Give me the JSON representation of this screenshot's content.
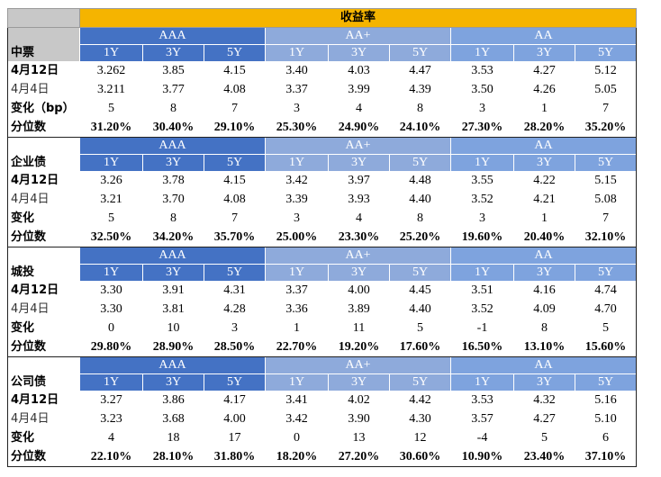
{
  "title": "收益率",
  "columns": [
    "1Y",
    "3Y",
    "5Y",
    "1Y",
    "3Y",
    "5Y",
    "1Y",
    "3Y",
    "5Y"
  ],
  "groups": [
    "AAA",
    "AA+",
    "AA"
  ],
  "sections": [
    {
      "name": "中票",
      "rows": [
        {
          "label": "4月12日",
          "style": "bold",
          "values": [
            "3.262",
            "3.85",
            "4.15",
            "3.40",
            "4.03",
            "4.47",
            "3.53",
            "4.27",
            "5.12"
          ]
        },
        {
          "label": "4月4日",
          "style": "light",
          "values": [
            "3.211",
            "3.77",
            "4.08",
            "3.37",
            "3.99",
            "4.39",
            "3.50",
            "4.26",
            "5.05"
          ]
        },
        {
          "label": "变化（bp）",
          "style": "bold",
          "values": [
            "5",
            "8",
            "7",
            "3",
            "4",
            "8",
            "3",
            "1",
            "7"
          ]
        },
        {
          "label": "分位数",
          "style": "pct",
          "values": [
            "31.20%",
            "30.40%",
            "29.10%",
            "25.30%",
            "24.90%",
            "24.10%",
            "27.30%",
            "28.20%",
            "35.20%"
          ]
        }
      ]
    },
    {
      "name": "企业债",
      "rows": [
        {
          "label": "4月12日",
          "style": "bold",
          "values": [
            "3.26",
            "3.78",
            "4.15",
            "3.42",
            "3.97",
            "4.48",
            "3.55",
            "4.22",
            "5.15"
          ]
        },
        {
          "label": "4月4日",
          "style": "light",
          "values": [
            "3.21",
            "3.70",
            "4.08",
            "3.39",
            "3.93",
            "4.40",
            "3.52",
            "4.21",
            "5.08"
          ]
        },
        {
          "label": "变化",
          "style": "bold",
          "values": [
            "5",
            "8",
            "7",
            "3",
            "4",
            "8",
            "3",
            "1",
            "7"
          ]
        },
        {
          "label": "分位数",
          "style": "pct",
          "values": [
            "32.50%",
            "34.20%",
            "35.70%",
            "25.00%",
            "23.30%",
            "25.20%",
            "19.60%",
            "20.40%",
            "32.10%"
          ]
        }
      ]
    },
    {
      "name": "城投",
      "rows": [
        {
          "label": "4月12日",
          "style": "bold",
          "values": [
            "3.30",
            "3.91",
            "4.31",
            "3.37",
            "4.00",
            "4.45",
            "3.51",
            "4.16",
            "4.74"
          ]
        },
        {
          "label": "4月4日",
          "style": "light",
          "values": [
            "3.30",
            "3.81",
            "4.28",
            "3.36",
            "3.89",
            "4.40",
            "3.52",
            "4.09",
            "4.70"
          ]
        },
        {
          "label": "变化",
          "style": "bold",
          "values": [
            "0",
            "10",
            "3",
            "1",
            "11",
            "5",
            "-1",
            "8",
            "5"
          ]
        },
        {
          "label": "分位数",
          "style": "pct",
          "values": [
            "29.80%",
            "28.90%",
            "28.50%",
            "22.70%",
            "19.20%",
            "17.60%",
            "16.50%",
            "13.10%",
            "15.60%"
          ]
        }
      ]
    },
    {
      "name": "公司债",
      "rows": [
        {
          "label": "4月12日",
          "style": "bold",
          "values": [
            "3.27",
            "3.86",
            "4.17",
            "3.41",
            "4.02",
            "4.42",
            "3.53",
            "4.32",
            "5.16"
          ]
        },
        {
          "label": "4月4日",
          "style": "light",
          "values": [
            "3.23",
            "3.68",
            "4.00",
            "3.42",
            "3.90",
            "4.30",
            "3.57",
            "4.27",
            "5.10"
          ]
        },
        {
          "label": "变化",
          "style": "bold",
          "values": [
            "4",
            "18",
            "17",
            "0",
            "13",
            "12",
            "-4",
            "5",
            "6"
          ]
        },
        {
          "label": "分位数",
          "style": "pct",
          "values": [
            "22.10%",
            "28.10%",
            "31.80%",
            "18.20%",
            "27.20%",
            "30.60%",
            "10.90%",
            "23.40%",
            "37.10%"
          ]
        }
      ]
    }
  ]
}
